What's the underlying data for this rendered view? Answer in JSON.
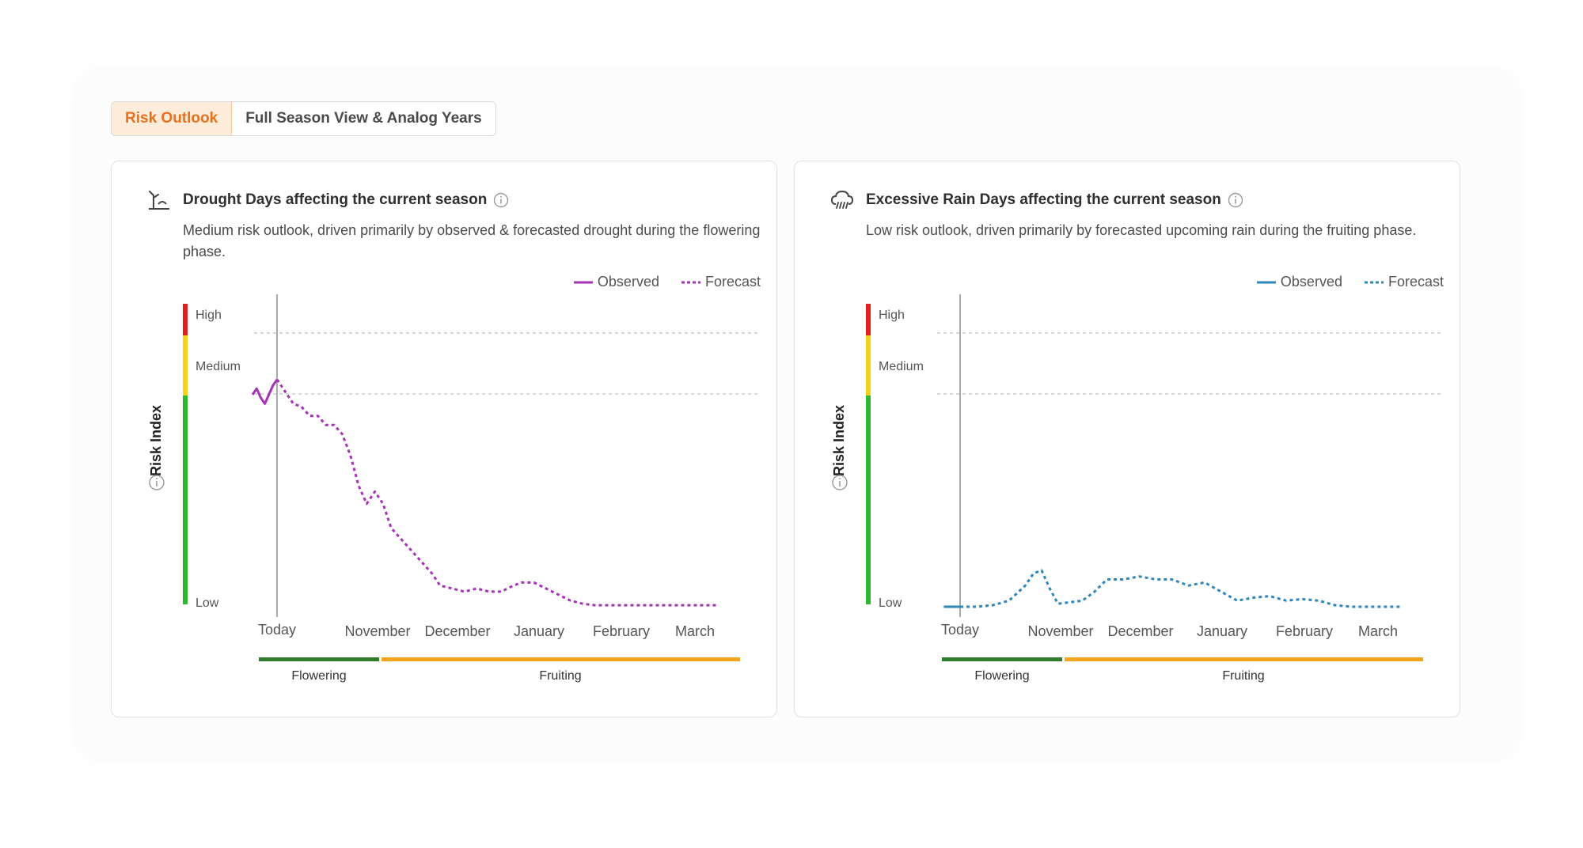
{
  "tabs": [
    {
      "label": "Risk Outlook",
      "active": true
    },
    {
      "label": "Full Season View & Analog Years",
      "active": false
    }
  ],
  "colors": {
    "accent": "#e8701f",
    "drought": "#a533b5",
    "rain": "#2f86b9",
    "high": "#e0201d",
    "medium": "#f5d11a",
    "low": "#2db82f",
    "flowering": "#2f7d2c",
    "fruiting": "#f2a41e"
  },
  "cards": [
    {
      "title": "Drought Days affecting the current season",
      "icon": "drought-icon",
      "description": "Medium risk outlook, driven primarily by observed & forecasted drought during the flowering phase.",
      "legend": {
        "observed": "Observed",
        "forecast": "Forecast"
      },
      "yaxis": {
        "label": "Risk Index",
        "high": "High",
        "medium": "Medium",
        "low": "Low"
      },
      "xaxis": [
        "Today",
        "November",
        "December",
        "January",
        "February",
        "March"
      ],
      "phases": {
        "flowering": "Flowering",
        "fruiting": "Fruiting"
      }
    },
    {
      "title": "Excessive Rain Days affecting the current season",
      "icon": "rain-cloud-icon",
      "description": "Low risk outlook, driven primarily by forecasted upcoming rain during the fruiting phase.",
      "legend": {
        "observed": "Observed",
        "forecast": "Forecast"
      },
      "yaxis": {
        "label": "Risk Index",
        "high": "High",
        "medium": "Medium",
        "low": "Low"
      },
      "xaxis": [
        "Today",
        "November",
        "December",
        "January",
        "February",
        "March"
      ],
      "phases": {
        "flowering": "Flowering",
        "fruiting": "Fruiting"
      }
    }
  ],
  "chart_data": [
    {
      "type": "line",
      "title": "Drought Days affecting the current season",
      "ylabel": "Risk Index",
      "ylim": [
        0,
        1
      ],
      "y_thresholds": {
        "low_medium": 0.69,
        "medium_high": 0.89
      },
      "x_ticks": [
        "Today",
        "November",
        "December",
        "January",
        "February",
        "March"
      ],
      "series": [
        {
          "name": "Observed",
          "style": "solid",
          "x": [
            -0.3,
            -0.25,
            -0.2,
            -0.15,
            -0.1,
            -0.05,
            0
          ],
          "y": [
            0.7,
            0.72,
            0.69,
            0.67,
            0.7,
            0.73,
            0.75
          ]
        },
        {
          "name": "Forecast",
          "style": "dashed",
          "x": [
            0,
            0.1,
            0.2,
            0.3,
            0.4,
            0.5,
            0.6,
            0.7,
            0.8,
            0.9,
            1.0,
            1.1,
            1.2,
            1.3,
            1.4,
            1.5,
            1.6,
            1.7,
            1.8,
            1.9,
            2.0,
            2.15,
            2.3,
            2.45,
            2.6,
            2.75,
            2.9,
            3.0,
            3.15,
            3.3,
            3.45,
            3.6,
            3.75,
            3.9,
            4.05,
            4.2,
            4.35,
            4.5,
            4.65,
            4.8,
            4.95,
            5.1,
            5.25,
            5.4
          ],
          "y": [
            0.75,
            0.71,
            0.67,
            0.66,
            0.63,
            0.63,
            0.6,
            0.6,
            0.57,
            0.5,
            0.4,
            0.34,
            0.38,
            0.34,
            0.26,
            0.23,
            0.2,
            0.17,
            0.14,
            0.11,
            0.07,
            0.06,
            0.05,
            0.06,
            0.05,
            0.05,
            0.07,
            0.08,
            0.08,
            0.06,
            0.04,
            0.02,
            0.01,
            0.005,
            0.005,
            0.005,
            0.005,
            0.005,
            0.005,
            0.005,
            0.005,
            0.005,
            0.005,
            0.005
          ]
        }
      ]
    },
    {
      "type": "line",
      "title": "Excessive Rain Days affecting the current season",
      "ylabel": "Risk Index",
      "ylim": [
        0,
        1
      ],
      "y_thresholds": {
        "low_medium": 0.69,
        "medium_high": 0.89
      },
      "x_ticks": [
        "Today",
        "November",
        "December",
        "January",
        "February",
        "March"
      ],
      "series": [
        {
          "name": "Observed",
          "style": "solid",
          "x": [
            -0.2,
            0
          ],
          "y": [
            0.0,
            0.0
          ]
        },
        {
          "name": "Forecast",
          "style": "dashed",
          "x": [
            0,
            0.2,
            0.4,
            0.6,
            0.8,
            0.9,
            1.0,
            1.1,
            1.2,
            1.35,
            1.5,
            1.65,
            1.8,
            2.0,
            2.2,
            2.4,
            2.6,
            2.8,
            3.0,
            3.2,
            3.4,
            3.6,
            3.8,
            4.0,
            4.2,
            4.4,
            4.6,
            4.8,
            5.0,
            5.2,
            5.4
          ],
          "y": [
            0.0,
            0.0,
            0.005,
            0.02,
            0.07,
            0.11,
            0.12,
            0.06,
            0.01,
            0.015,
            0.02,
            0.05,
            0.09,
            0.09,
            0.1,
            0.09,
            0.09,
            0.07,
            0.08,
            0.05,
            0.02,
            0.03,
            0.035,
            0.02,
            0.025,
            0.02,
            0.005,
            0.0,
            0.0,
            0.0,
            0.0
          ]
        }
      ]
    }
  ]
}
